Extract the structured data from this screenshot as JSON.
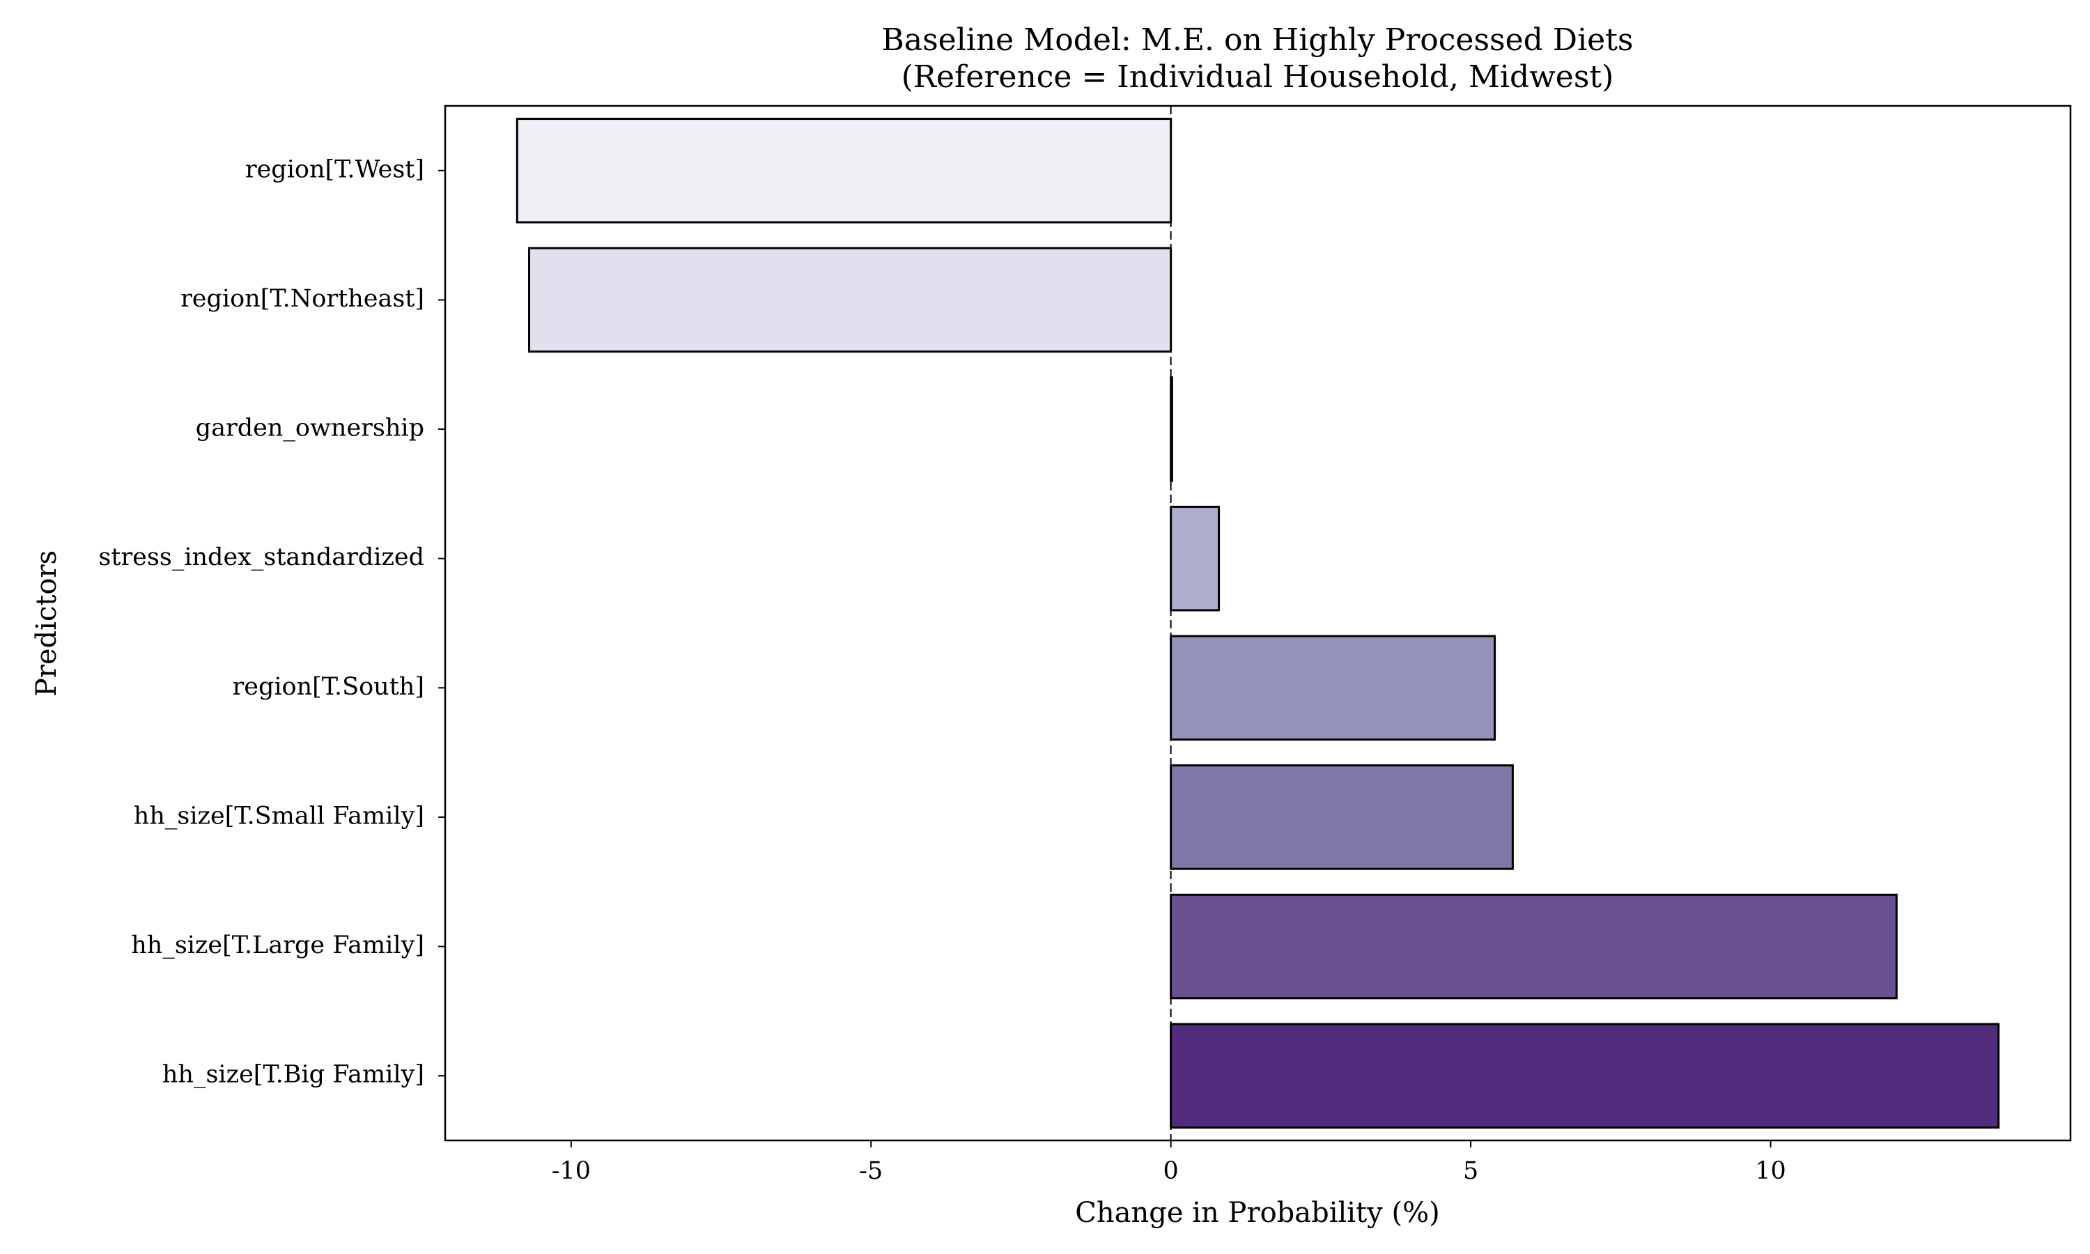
{
  "chart_data": {
    "type": "bar",
    "orientation": "horizontal",
    "title": "Baseline Model: M.E. on Highly Processed Diets",
    "subtitle": "(Reference = Individual Household, Midwest)",
    "xlabel": "Change in Probability (%)",
    "ylabel": "Predictors",
    "xlim": [
      -12.1,
      15.0
    ],
    "xticks": [
      -10,
      -5,
      0,
      5,
      10
    ],
    "xtick_labels": [
      "-10",
      "-5",
      "0",
      "5",
      "10"
    ],
    "reference_line": 0,
    "grid": false,
    "categories": [
      "region[T.West]",
      "region[T.Northeast]",
      "garden_ownership",
      "stress_index_standardized",
      "region[T.South]",
      "hh_size[T.Small Family]",
      "hh_size[T.Large Family]",
      "hh_size[T.Big Family]"
    ],
    "values": [
      -10.9,
      -10.7,
      0.02,
      0.8,
      5.4,
      5.7,
      12.1,
      13.8
    ],
    "colors": [
      "#f0eff6",
      "#e1e0ee",
      "#c9c8e2",
      "#b0aecf",
      "#9693ba",
      "#8178a8",
      "#6a5192",
      "#522d7d"
    ],
    "edge_color": "#000000"
  }
}
